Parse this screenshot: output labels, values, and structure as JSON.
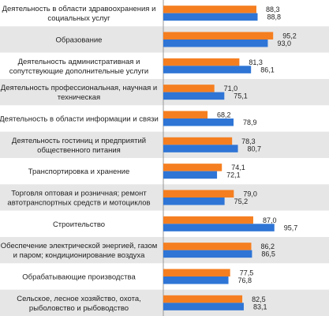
{
  "chart_data": {
    "type": "bar",
    "orientation": "horizontal",
    "grid": false,
    "legend": "none",
    "categories": [
      [
        "Деятельность в области здравоохранения и",
        "социальных услуг"
      ],
      [
        "Образование"
      ],
      [
        "Деятельность административная и",
        "сопутствующие дополнительные услуги"
      ],
      [
        "Деятельность профессиональная, научная и",
        "техническая"
      ],
      [
        "Деятельность в области информации и связи"
      ],
      [
        "Деятельность гостиниц и предприятий",
        "общественного питания"
      ],
      [
        "Транспортировка и хранение"
      ],
      [
        "Торговля оптовая и розничная; ремонт",
        "автотранспортных средств и мотоциклов"
      ],
      [
        "Строительство"
      ],
      [
        "Обеспечение электрической энергией, газом",
        "и паром; кондиционирование воздуха"
      ],
      [
        "Обрабатывающие производства"
      ],
      [
        "Сельское, лесное хозяйство, охота,",
        "рыболовство и рыбоводство"
      ]
    ],
    "series": [
      {
        "color": "#f57f20",
        "values": [
          88.3,
          95.2,
          81.3,
          71.0,
          68.2,
          78.3,
          74.1,
          79.0,
          87.0,
          86.2,
          77.5,
          82.5
        ],
        "labels": [
          "88,3",
          "95,2",
          "81,3",
          "71,0",
          "68,2",
          "78,3",
          "74,1",
          "79,0",
          "87,0",
          "86,2",
          "77,5",
          "82,5"
        ]
      },
      {
        "color": "#2e75d6",
        "values": [
          88.8,
          93.0,
          86.1,
          75.1,
          78.9,
          80.7,
          72.1,
          75.2,
          95.7,
          86.5,
          76.8,
          83.1
        ],
        "labels": [
          "88,8",
          "93,0",
          "86,1",
          "75,1",
          "78,9",
          "80,7",
          "72,1",
          "75,2",
          "95,7",
          "86,5",
          "76,8",
          "83,1"
        ]
      }
    ],
    "xlim": [
      0,
      100
    ]
  },
  "colors": {
    "band_odd": "#ffffff",
    "band_even": "#e6e6e6",
    "axis": "#9a9a9a"
  }
}
